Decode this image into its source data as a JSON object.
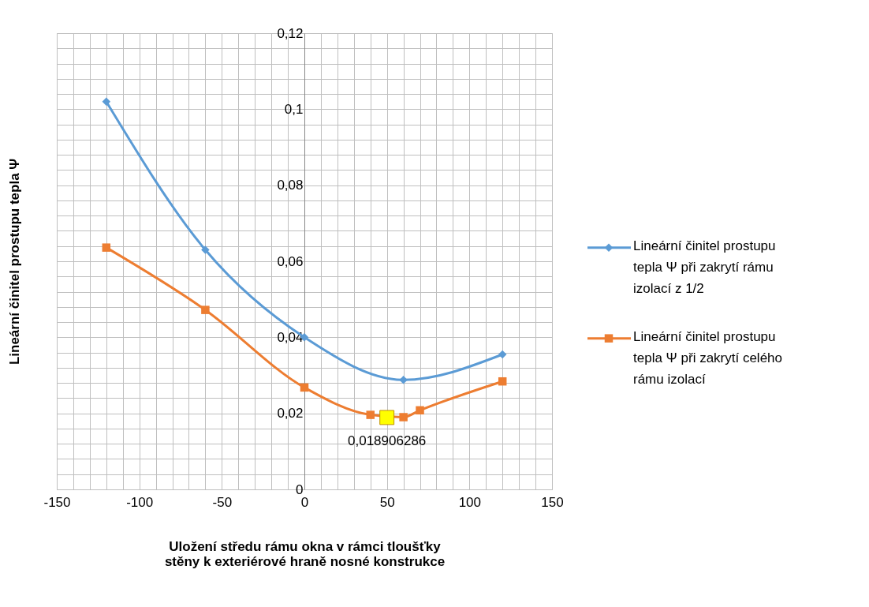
{
  "chart_data": {
    "type": "line",
    "xlabel": "Uložení středu rámu okna v rámci tloušťky stěny k exteriérové hraně nosné konstrukce",
    "ylabel": "Lineární činitel prostupu tepla Ψ",
    "series": [
      {
        "name": "Lineární činitel prostupu tepla Ψ při zakrytí rámu izolací z 1/2",
        "color": "#5b9bd5",
        "marker": "diamond",
        "x": [
          -120,
          -60,
          0,
          60,
          120
        ],
        "values": [
          0.102,
          0.063,
          0.04,
          0.0288,
          0.0355
        ]
      },
      {
        "name": "Lineární činitel prostupu tepla Ψ při zakrytí celého rámu izolací",
        "color": "#ed7d31",
        "marker": "square",
        "x": [
          -120,
          -60,
          0,
          40,
          60,
          70,
          120
        ],
        "values": [
          0.0636,
          0.0472,
          0.0268,
          0.0196,
          0.019,
          0.0208,
          0.0284
        ]
      },
      {
        "type": "scatter",
        "color": "#ffff00",
        "marker": "square",
        "x": [
          50
        ],
        "values": [
          0.018906286
        ],
        "value_labels": [
          "0,018906286"
        ]
      }
    ],
    "xlim": [
      -150,
      150
    ],
    "xticks": [
      -150,
      {
        "value": -140,
        "label": null
      },
      {
        "value": -130,
        "label": null
      },
      {
        "value": -120,
        "label": null
      },
      {
        "value": -110,
        "label": null
      },
      -100,
      {
        "value": -90,
        "label": null
      },
      {
        "value": -80,
        "label": null
      },
      {
        "value": -70,
        "label": null
      },
      {
        "value": -60,
        "label": null
      },
      -50,
      {
        "value": -40,
        "label": null
      },
      {
        "value": -30,
        "label": null
      },
      {
        "value": -20,
        "label": null
      },
      {
        "value": -10,
        "label": null
      },
      0,
      {
        "value": 10,
        "label": null
      },
      {
        "value": 20,
        "label": null
      },
      {
        "value": 30,
        "label": null
      },
      {
        "value": 40,
        "label": null
      },
      50,
      {
        "value": 60,
        "label": null
      },
      {
        "value": 70,
        "label": null
      },
      {
        "value": 80,
        "label": null
      },
      {
        "value": 90,
        "label": null
      },
      100,
      {
        "value": 110,
        "label": null
      },
      {
        "value": 120,
        "label": null
      },
      {
        "value": 130,
        "label": null
      },
      {
        "value": 140,
        "label": null
      },
      150
    ],
    "ylim": [
      0,
      0.12
    ],
    "yticks": [
      {
        "value": 0,
        "label": "0"
      },
      {
        "value": 0.004,
        "label": null
      },
      {
        "value": 0.008,
        "label": null
      },
      {
        "value": 0.012,
        "label": null
      },
      {
        "value": 0.016,
        "label": null
      },
      {
        "value": 0.02,
        "label": "0,02"
      },
      {
        "value": 0.024,
        "label": null
      },
      {
        "value": 0.028,
        "label": null
      },
      {
        "value": 0.032,
        "label": null
      },
      {
        "value": 0.036,
        "label": null
      },
      {
        "value": 0.04,
        "label": "0,04"
      },
      {
        "value": 0.044,
        "label": null
      },
      {
        "value": 0.048,
        "label": null
      },
      {
        "value": 0.052,
        "label": null
      },
      {
        "value": 0.056,
        "label": null
      },
      {
        "value": 0.06,
        "label": "0,06"
      },
      {
        "value": 0.064,
        "label": null
      },
      {
        "value": 0.068,
        "label": null
      },
      {
        "value": 0.072,
        "label": null
      },
      {
        "value": 0.076,
        "label": null
      },
      {
        "value": 0.08,
        "label": "0,08"
      },
      {
        "value": 0.084,
        "label": null
      },
      {
        "value": 0.088,
        "label": null
      },
      {
        "value": 0.092,
        "label": null
      },
      {
        "value": 0.096,
        "label": null
      },
      {
        "value": 0.1,
        "label": "0,1"
      },
      {
        "value": 0.104,
        "label": null
      },
      {
        "value": 0.108,
        "label": null
      },
      {
        "value": 0.112,
        "label": null
      },
      {
        "value": 0.116,
        "label": null
      },
      {
        "value": 0.12,
        "label": "0,12"
      }
    ],
    "grid": true,
    "legend": "right",
    "line_style": "solid"
  }
}
